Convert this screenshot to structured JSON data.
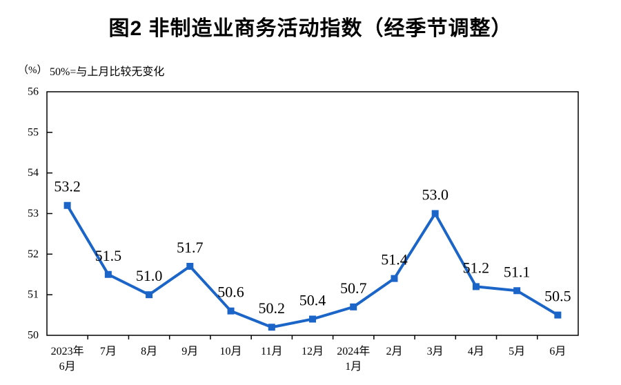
{
  "title": "图2 非制造业商务活动指数（经季节调整）",
  "unit_label": "（%）",
  "note": "50%=与上月比较无变化",
  "colors": {
    "line": "#1b64c8",
    "axis": "#000000",
    "text": "#000000"
  },
  "chart_data": {
    "type": "line",
    "title": "图2 非制造业商务活动指数（经季节调整）",
    "subtitle": "50%=与上月比较无变化",
    "ylabel": "（%）",
    "xlabel": "",
    "categories": [
      "2023年\n6月",
      "7月",
      "8月",
      "9月",
      "10月",
      "11月",
      "12月",
      "2024年\n1月",
      "2月",
      "3月",
      "4月",
      "5月",
      "6月"
    ],
    "series": [
      {
        "name": "非制造业商务活动指数",
        "values": [
          53.2,
          51.5,
          51.0,
          51.7,
          50.6,
          50.2,
          50.4,
          50.7,
          51.4,
          53.0,
          51.2,
          51.1,
          50.5
        ]
      }
    ],
    "data_labels": [
      "53.2",
      "51.5",
      "51.0",
      "51.7",
      "50.6",
      "50.2",
      "50.4",
      "50.7",
      "51.4",
      "53.0",
      "51.2",
      "51.1",
      "50.5"
    ],
    "ylim": [
      50,
      56
    ],
    "y_ticks": [
      50,
      51,
      52,
      53,
      54,
      55,
      56
    ],
    "grid": false,
    "legend_position": "none",
    "marker": "square",
    "line_color": "#1b64c8"
  }
}
